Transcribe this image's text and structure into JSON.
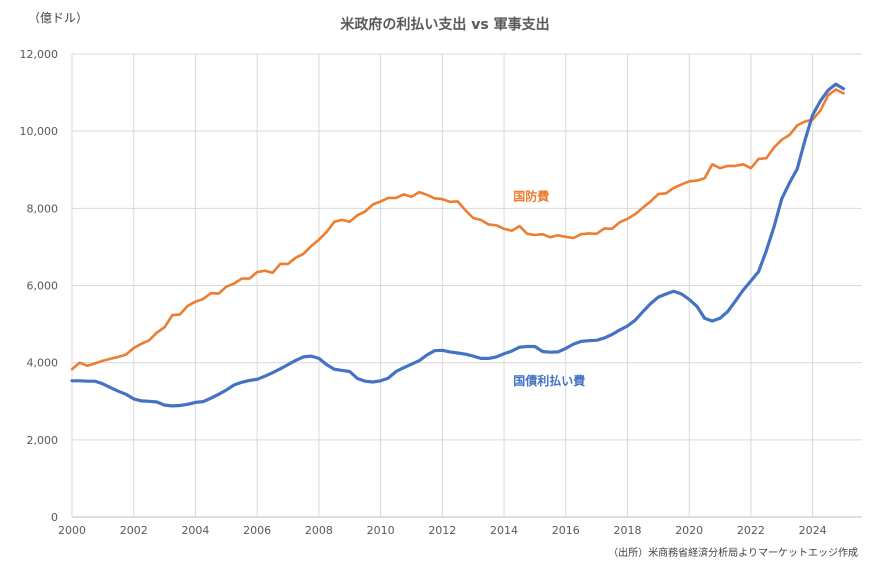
{
  "chart_data": {
    "type": "line",
    "title": "米政府の利払い支出 vs 軍事支出",
    "unit_label": "（億ドル）",
    "source": "（出所）米商務省経済分析局よりマーケットエッジ作成",
    "xlim": [
      2000,
      2025.6
    ],
    "ylim": [
      0,
      12000
    ],
    "x_ticks": [
      2000,
      2002,
      2004,
      2006,
      2008,
      2010,
      2012,
      2014,
      2016,
      2018,
      2020,
      2022,
      2024
    ],
    "y_ticks": [
      0,
      2000,
      4000,
      6000,
      8000,
      10000,
      12000
    ],
    "y_tick_labels": [
      "0",
      "2,000",
      "4,000",
      "6,000",
      "8,000",
      "10,000",
      "12,000"
    ],
    "grid": true,
    "series": [
      {
        "name": "国防費",
        "color": "#ed7d31",
        "label_at": [
          2014.3,
          8200
        ],
        "points": [
          [
            2000.0,
            3830
          ],
          [
            2000.25,
            4000
          ],
          [
            2000.5,
            3920
          ],
          [
            2000.75,
            3980
          ],
          [
            2001.0,
            4050
          ],
          [
            2001.25,
            4100
          ],
          [
            2001.5,
            4150
          ],
          [
            2001.75,
            4210
          ],
          [
            2002.0,
            4380
          ],
          [
            2002.25,
            4490
          ],
          [
            2002.5,
            4580
          ],
          [
            2002.75,
            4780
          ],
          [
            2003.0,
            4920
          ],
          [
            2003.25,
            5230
          ],
          [
            2003.5,
            5250
          ],
          [
            2003.75,
            5470
          ],
          [
            2004.0,
            5580
          ],
          [
            2004.25,
            5650
          ],
          [
            2004.5,
            5800
          ],
          [
            2004.75,
            5790
          ],
          [
            2005.0,
            5970
          ],
          [
            2005.25,
            6050
          ],
          [
            2005.5,
            6180
          ],
          [
            2005.75,
            6180
          ],
          [
            2006.0,
            6350
          ],
          [
            2006.25,
            6380
          ],
          [
            2006.5,
            6330
          ],
          [
            2006.75,
            6560
          ],
          [
            2007.0,
            6560
          ],
          [
            2007.25,
            6720
          ],
          [
            2007.5,
            6820
          ],
          [
            2007.75,
            7020
          ],
          [
            2008.0,
            7190
          ],
          [
            2008.25,
            7390
          ],
          [
            2008.5,
            7650
          ],
          [
            2008.75,
            7700
          ],
          [
            2009.0,
            7650
          ],
          [
            2009.25,
            7820
          ],
          [
            2009.5,
            7920
          ],
          [
            2009.75,
            8100
          ],
          [
            2010.0,
            8180
          ],
          [
            2010.25,
            8270
          ],
          [
            2010.5,
            8270
          ],
          [
            2010.75,
            8360
          ],
          [
            2011.0,
            8300
          ],
          [
            2011.25,
            8420
          ],
          [
            2011.5,
            8350
          ],
          [
            2011.75,
            8260
          ],
          [
            2012.0,
            8240
          ],
          [
            2012.25,
            8170
          ],
          [
            2012.5,
            8180
          ],
          [
            2012.75,
            7950
          ],
          [
            2013.0,
            7750
          ],
          [
            2013.25,
            7700
          ],
          [
            2013.5,
            7580
          ],
          [
            2013.75,
            7560
          ],
          [
            2014.0,
            7470
          ],
          [
            2014.25,
            7420
          ],
          [
            2014.5,
            7540
          ],
          [
            2014.75,
            7340
          ],
          [
            2015.0,
            7310
          ],
          [
            2015.25,
            7330
          ],
          [
            2015.5,
            7250
          ],
          [
            2015.75,
            7300
          ],
          [
            2016.0,
            7260
          ],
          [
            2016.25,
            7230
          ],
          [
            2016.5,
            7330
          ],
          [
            2016.75,
            7350
          ],
          [
            2017.0,
            7340
          ],
          [
            2017.25,
            7480
          ],
          [
            2017.5,
            7470
          ],
          [
            2017.75,
            7640
          ],
          [
            2018.0,
            7730
          ],
          [
            2018.25,
            7850
          ],
          [
            2018.5,
            8020
          ],
          [
            2018.75,
            8180
          ],
          [
            2019.0,
            8370
          ],
          [
            2019.25,
            8390
          ],
          [
            2019.5,
            8530
          ],
          [
            2019.75,
            8620
          ],
          [
            2020.0,
            8700
          ],
          [
            2020.25,
            8720
          ],
          [
            2020.5,
            8780
          ],
          [
            2020.75,
            9140
          ],
          [
            2021.0,
            9040
          ],
          [
            2021.25,
            9100
          ],
          [
            2021.5,
            9100
          ],
          [
            2021.75,
            9140
          ],
          [
            2022.0,
            9040
          ],
          [
            2022.25,
            9280
          ],
          [
            2022.5,
            9300
          ],
          [
            2022.75,
            9580
          ],
          [
            2023.0,
            9780
          ],
          [
            2023.25,
            9900
          ],
          [
            2023.5,
            10150
          ],
          [
            2023.75,
            10250
          ],
          [
            2024.0,
            10300
          ],
          [
            2024.25,
            10530
          ],
          [
            2024.5,
            10930
          ],
          [
            2024.75,
            11080
          ],
          [
            2025.0,
            10980
          ]
        ]
      },
      {
        "name": "国債利払い費",
        "color": "#4472c4",
        "label_at": [
          2014.3,
          3420
        ],
        "points": [
          [
            2000.0,
            3530
          ],
          [
            2000.25,
            3530
          ],
          [
            2000.5,
            3520
          ],
          [
            2000.75,
            3520
          ],
          [
            2001.0,
            3450
          ],
          [
            2001.25,
            3350
          ],
          [
            2001.5,
            3260
          ],
          [
            2001.75,
            3180
          ],
          [
            2002.0,
            3060
          ],
          [
            2002.25,
            3010
          ],
          [
            2002.5,
            3000
          ],
          [
            2002.75,
            2980
          ],
          [
            2003.0,
            2900
          ],
          [
            2003.25,
            2880
          ],
          [
            2003.5,
            2890
          ],
          [
            2003.75,
            2920
          ],
          [
            2004.0,
            2970
          ],
          [
            2004.25,
            2990
          ],
          [
            2004.5,
            3080
          ],
          [
            2004.75,
            3180
          ],
          [
            2005.0,
            3290
          ],
          [
            2005.25,
            3420
          ],
          [
            2005.5,
            3490
          ],
          [
            2005.75,
            3540
          ],
          [
            2006.0,
            3570
          ],
          [
            2006.25,
            3650
          ],
          [
            2006.5,
            3740
          ],
          [
            2006.75,
            3840
          ],
          [
            2007.0,
            3950
          ],
          [
            2007.25,
            4060
          ],
          [
            2007.5,
            4150
          ],
          [
            2007.75,
            4170
          ],
          [
            2008.0,
            4110
          ],
          [
            2008.25,
            3950
          ],
          [
            2008.5,
            3830
          ],
          [
            2008.75,
            3800
          ],
          [
            2009.0,
            3770
          ],
          [
            2009.25,
            3590
          ],
          [
            2009.5,
            3520
          ],
          [
            2009.75,
            3500
          ],
          [
            2010.0,
            3530
          ],
          [
            2010.25,
            3600
          ],
          [
            2010.5,
            3770
          ],
          [
            2010.75,
            3870
          ],
          [
            2011.0,
            3960
          ],
          [
            2011.25,
            4050
          ],
          [
            2011.5,
            4200
          ],
          [
            2011.75,
            4310
          ],
          [
            2012.0,
            4320
          ],
          [
            2012.25,
            4280
          ],
          [
            2012.5,
            4250
          ],
          [
            2012.75,
            4220
          ],
          [
            2013.0,
            4170
          ],
          [
            2013.25,
            4110
          ],
          [
            2013.5,
            4110
          ],
          [
            2013.75,
            4150
          ],
          [
            2014.0,
            4230
          ],
          [
            2014.25,
            4300
          ],
          [
            2014.5,
            4400
          ],
          [
            2014.75,
            4420
          ],
          [
            2015.0,
            4420
          ],
          [
            2015.25,
            4290
          ],
          [
            2015.5,
            4270
          ],
          [
            2015.75,
            4280
          ],
          [
            2016.0,
            4370
          ],
          [
            2016.25,
            4480
          ],
          [
            2016.5,
            4550
          ],
          [
            2016.75,
            4570
          ],
          [
            2017.0,
            4580
          ],
          [
            2017.25,
            4640
          ],
          [
            2017.5,
            4730
          ],
          [
            2017.75,
            4850
          ],
          [
            2018.0,
            4950
          ],
          [
            2018.25,
            5100
          ],
          [
            2018.5,
            5320
          ],
          [
            2018.75,
            5530
          ],
          [
            2019.0,
            5700
          ],
          [
            2019.25,
            5780
          ],
          [
            2019.5,
            5850
          ],
          [
            2019.75,
            5780
          ],
          [
            2020.0,
            5640
          ],
          [
            2020.25,
            5460
          ],
          [
            2020.5,
            5150
          ],
          [
            2020.75,
            5080
          ],
          [
            2021.0,
            5150
          ],
          [
            2021.25,
            5330
          ],
          [
            2021.5,
            5600
          ],
          [
            2021.75,
            5880
          ],
          [
            2022.0,
            6120
          ],
          [
            2022.25,
            6360
          ],
          [
            2022.5,
            6900
          ],
          [
            2022.75,
            7530
          ],
          [
            2023.0,
            8250
          ],
          [
            2023.25,
            8660
          ],
          [
            2023.5,
            9020
          ],
          [
            2023.75,
            9760
          ],
          [
            2024.0,
            10420
          ],
          [
            2024.25,
            10780
          ],
          [
            2024.5,
            11060
          ],
          [
            2024.75,
            11220
          ],
          [
            2025.0,
            11100
          ]
        ]
      }
    ]
  }
}
